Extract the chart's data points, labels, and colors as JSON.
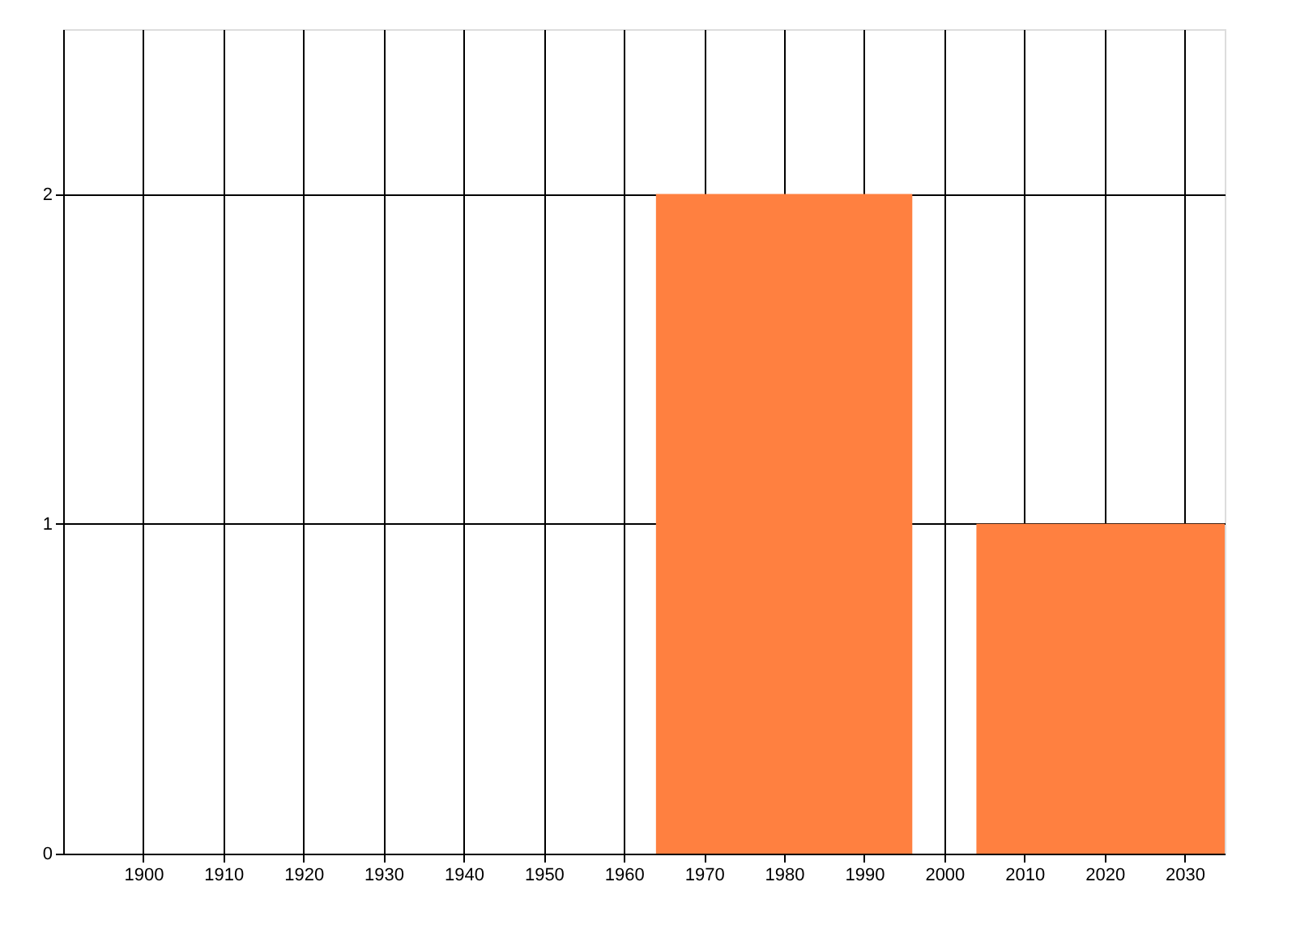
{
  "chart_data": {
    "type": "histogram",
    "bins": [
      1964,
      1996,
      2004,
      2035
    ],
    "values": [
      2,
      0,
      1
    ],
    "color": "#ff8040",
    "xlim": [
      1890,
      2035
    ],
    "xticks": [
      1900,
      1910,
      1920,
      1930,
      1940,
      1950,
      1960,
      1970,
      1980,
      1990,
      2000,
      2010,
      2020,
      2030
    ],
    "ylim": [
      0,
      2.5
    ],
    "yticks": [
      0,
      1,
      2
    ],
    "grid": true
  }
}
